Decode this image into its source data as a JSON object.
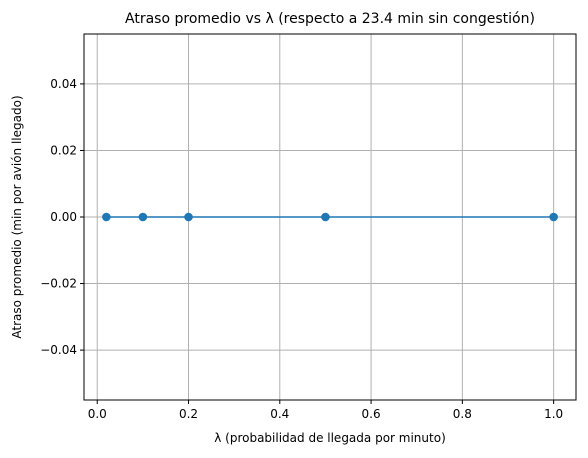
{
  "chart_data": {
    "type": "line",
    "title": "Atraso promedio vs λ (respecto a 23.4 min sin congestión)",
    "xlabel": "λ (probabilidad de llegada por minuto)",
    "ylabel": "Atraso promedio (min por avión llegado)",
    "x": [
      0.02,
      0.1,
      0.2,
      0.5,
      1.0
    ],
    "series": [
      {
        "values": [
          0,
          0,
          0,
          0,
          0
        ],
        "color": "#1f77b4",
        "marker": "circle"
      }
    ],
    "xlim": [
      -0.029,
      1.049
    ],
    "ylim": [
      -0.055,
      0.055
    ],
    "xticks": [
      0.0,
      0.2,
      0.4,
      0.6,
      0.8,
      1.0
    ],
    "xtick_labels": [
      "0.0",
      "0.2",
      "0.4",
      "0.6",
      "0.8",
      "1.0"
    ],
    "yticks": [
      -0.04,
      -0.02,
      0.0,
      0.02,
      0.04
    ],
    "ytick_labels": [
      "−0.04",
      "−0.02",
      "0.00",
      "0.02",
      "0.04"
    ],
    "grid": true,
    "grid_color": "#b0b0b0"
  }
}
